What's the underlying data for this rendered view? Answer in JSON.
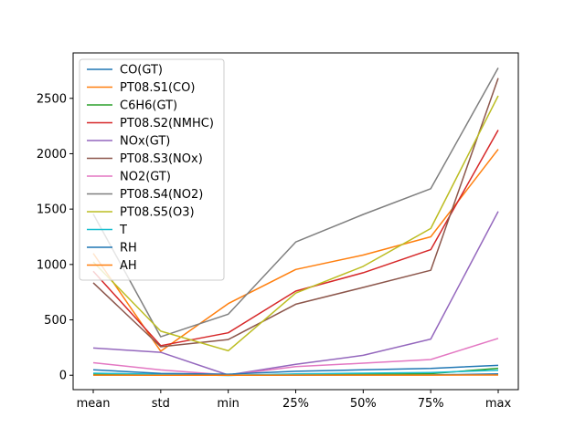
{
  "chart_data": {
    "type": "line",
    "title": "",
    "xlabel": "",
    "ylabel": "",
    "categories": [
      "mean",
      "std",
      "min",
      "25%",
      "50%",
      "75%",
      "max"
    ],
    "ylim": [
      -130,
      2910
    ],
    "yticks": [
      0,
      500,
      1000,
      1500,
      2000,
      2500
    ],
    "yticklabels": [
      "0",
      "500",
      "1000",
      "1500",
      "2000",
      "2500"
    ],
    "grid": false,
    "legend_position": "upper-left",
    "series": [
      {
        "name": "CO(GT)",
        "color": "#1f77b4",
        "values": [
          2,
          2,
          0,
          1,
          2,
          3,
          12
        ]
      },
      {
        "name": "PT08.S1(CO)",
        "color": "#ff7f0e",
        "values": [
          1100,
          217,
          647,
          955,
          1085,
          1250,
          2040
        ]
      },
      {
        "name": "C6H6(GT)",
        "color": "#2ca02c",
        "values": [
          10,
          7,
          0,
          4,
          8,
          14,
          63
        ]
      },
      {
        "name": "PT08.S2(NMHC)",
        "color": "#d62728",
        "values": [
          939,
          267,
          383,
          760,
          925,
          1134,
          2214
        ]
      },
      {
        "name": "NOx(GT)",
        "color": "#9467bd",
        "values": [
          246,
          207,
          2,
          98,
          180,
          326,
          1479
        ]
      },
      {
        "name": "PT08.S3(NOx)",
        "color": "#8c564b",
        "values": [
          835,
          257,
          322,
          641,
          793,
          948,
          2683
        ]
      },
      {
        "name": "NO2(GT)",
        "color": "#e377c2",
        "values": [
          113,
          48,
          2,
          78,
          109,
          142,
          333
        ]
      },
      {
        "name": "PT08.S4(NO2)",
        "color": "#7f7f7f",
        "values": [
          1456,
          347,
          551,
          1203,
          1452,
          1684,
          2775
        ]
      },
      {
        "name": "PT08.S5(O3)",
        "color": "#bcbd22",
        "values": [
          1023,
          398,
          221,
          742,
          983,
          1325,
          2523
        ]
      },
      {
        "name": "T",
        "color": "#17becf",
        "values": [
          18,
          9,
          -2,
          12,
          18,
          25,
          45
        ]
      },
      {
        "name": "RH",
        "color": "#1f77b4",
        "values": [
          49,
          17,
          9,
          36,
          49,
          62,
          89
        ]
      },
      {
        "name": "AH",
        "color": "#ff7f0e",
        "values": [
          1,
          0,
          0,
          1,
          1,
          1,
          2
        ]
      }
    ]
  }
}
